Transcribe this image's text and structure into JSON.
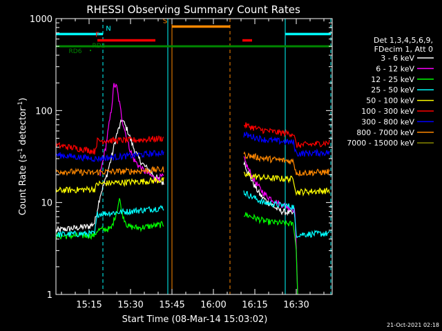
{
  "chart_data": {
    "type": "line",
    "title": "RHESSI Observing Summary Count Rates",
    "xlabel": "Start Time (08-Mar-14 15:03:02)",
    "ylabel_main": "Count Rate (s",
    "ylabel_sup1": "-1",
    "ylabel_mid": " detector",
    "ylabel_sup2": "-1",
    "ylabel_end": ")",
    "y_scale": "log",
    "ylim": [
      1,
      1000
    ],
    "x_start_label": "15:03:02",
    "xlim_minutes": [
      0,
      100
    ],
    "x_ticks": [
      {
        "label": "15:15",
        "minute": 12
      },
      {
        "label": "15:30",
        "minute": 27
      },
      {
        "label": "15:45",
        "minute": 42
      },
      {
        "label": "16:00",
        "minute": 57
      },
      {
        "label": "16:15",
        "minute": 72
      },
      {
        "label": "16:30",
        "minute": 87
      }
    ],
    "y_ticks": [
      {
        "label": "1",
        "value": 1
      },
      {
        "label": "10",
        "value": 10
      },
      {
        "label": "100",
        "value": 100
      },
      {
        "label": "1000",
        "value": 1000
      }
    ],
    "legend_header": [
      "Det 1,3,4,5,6,9,",
      "FDecim 1, Att 0"
    ],
    "series": [
      {
        "name": "3 - 6 keV",
        "color": "#ffffff",
        "segments": [
          [
            [
              0,
              5
            ],
            [
              12,
              5.5
            ],
            [
              14,
              6
            ],
            [
              16,
              12
            ],
            [
              18,
              18
            ],
            [
              20,
              30
            ],
            [
              22,
              55
            ],
            [
              24,
              80
            ],
            [
              26,
              60
            ],
            [
              28,
              40
            ],
            [
              30,
              30
            ],
            [
              32,
              25
            ],
            [
              34,
              22
            ],
            [
              36,
              19
            ],
            [
              38,
              17
            ],
            [
              39,
              16
            ]
          ],
          [
            [
              68,
              28
            ],
            [
              70,
              20
            ],
            [
              72,
              15
            ],
            [
              74,
              12
            ],
            [
              76,
              10.5
            ],
            [
              78,
              9.5
            ],
            [
              80,
              8.5
            ],
            [
              82,
              8
            ],
            [
              84,
              7.8
            ],
            [
              86,
              7.5
            ]
          ]
        ]
      },
      {
        "name": "6 - 12 keV",
        "color": "#ff00ff",
        "segments": [
          [
            [
              16,
              20
            ],
            [
              18,
              40
            ],
            [
              20,
              100
            ],
            [
              21,
              190
            ],
            [
              22,
              180
            ],
            [
              23,
              120
            ],
            [
              24,
              80
            ],
            [
              26,
              45
            ],
            [
              28,
              30
            ],
            [
              30,
              25
            ],
            [
              32,
              22
            ],
            [
              34,
              20
            ],
            [
              36,
              18
            ],
            [
              38,
              19
            ],
            [
              39,
              19
            ]
          ],
          [
            [
              68,
              30
            ],
            [
              70,
              22
            ],
            [
              72,
              17
            ],
            [
              74,
              14
            ],
            [
              76,
              12
            ],
            [
              78,
              11
            ],
            [
              80,
              10
            ],
            [
              82,
              9.5
            ],
            [
              84,
              9
            ],
            [
              86,
              8.5
            ],
            [
              86.5,
              8
            ],
            [
              87,
              3
            ],
            [
              87.5,
              1
            ]
          ]
        ]
      },
      {
        "name": "12 - 25 keV",
        "color": "#00ff00",
        "segments": [
          [
            [
              0,
              4.3
            ],
            [
              14,
              4.4
            ],
            [
              15,
              5
            ],
            [
              20,
              5.2
            ],
            [
              22,
              8
            ],
            [
              23,
              11
            ],
            [
              24,
              7.5
            ],
            [
              26,
              5.5
            ],
            [
              30,
              5.3
            ],
            [
              39,
              5.8
            ]
          ],
          [
            [
              68,
              7.5
            ],
            [
              76,
              6.2
            ],
            [
              86,
              5.8
            ],
            [
              87,
              3
            ],
            [
              87.5,
              1
            ]
          ]
        ]
      },
      {
        "name": "25 - 50 keV",
        "color": "#00ffff",
        "segments": [
          [
            [
              0,
              4.5
            ],
            [
              14,
              4.6
            ],
            [
              15,
              7.5
            ],
            [
              30,
              8.2
            ],
            [
              39,
              8.8
            ]
          ],
          [
            [
              68,
              13
            ],
            [
              70,
              12
            ],
            [
              75,
              10
            ],
            [
              80,
              9.5
            ],
            [
              86,
              9
            ],
            [
              87,
              4.5
            ],
            [
              99,
              4.6
            ]
          ]
        ]
      },
      {
        "name": "50 - 100 keV",
        "color": "#ffff00",
        "segments": [
          [
            [
              0,
              13.5
            ],
            [
              14,
              14
            ],
            [
              15,
              16
            ],
            [
              39,
              17.5
            ]
          ],
          [
            [
              68,
              20
            ],
            [
              76,
              18.5
            ],
            [
              86,
              18
            ],
            [
              87,
              13
            ],
            [
              99,
              13.5
            ]
          ]
        ]
      },
      {
        "name": "100 - 300 keV",
        "color": "#ff0000",
        "segments": [
          [
            [
              0,
              42
            ],
            [
              10,
              38
            ],
            [
              14,
              36
            ],
            [
              15,
              47
            ],
            [
              30,
              48
            ],
            [
              39,
              50
            ]
          ],
          [
            [
              68,
              70
            ],
            [
              74,
              62
            ],
            [
              80,
              58
            ],
            [
              86,
              56
            ],
            [
              87,
              42
            ],
            [
              93,
              43
            ],
            [
              99,
              45
            ]
          ]
        ]
      },
      {
        "name": "300 - 800 keV",
        "color": "#0000ff",
        "segments": [
          [
            [
              0,
              33
            ],
            [
              14,
              30
            ],
            [
              15,
              30
            ],
            [
              20,
              31
            ],
            [
              30,
              33
            ],
            [
              39,
              35
            ]
          ],
          [
            [
              68,
              55
            ],
            [
              76,
              48
            ],
            [
              86,
              45
            ],
            [
              87,
              34
            ],
            [
              99,
              35
            ]
          ]
        ]
      },
      {
        "name": "800 - 7000 keV",
        "color": "#ff8800",
        "segments": [
          [
            [
              0,
              22
            ],
            [
              14,
              21
            ],
            [
              15,
              21.5
            ],
            [
              30,
              22
            ],
            [
              39,
              23
            ]
          ],
          [
            [
              68,
              33
            ],
            [
              76,
              30
            ],
            [
              86,
              28
            ],
            [
              87,
              21
            ],
            [
              99,
              21.5
            ]
          ]
        ]
      },
      {
        "name": "7000 - 15000 keV",
        "color": "#888800",
        "segments": []
      }
    ],
    "flags": [
      {
        "label": "N",
        "color": "#00ffff",
        "label_minute": 19,
        "segments": [
          [
            0,
            17
          ],
          [
            83,
            99.5
          ]
        ],
        "level": 680
      },
      {
        "label": "F",
        "color": "#ff0000",
        "label_minute": 15,
        "segments": [
          [
            15,
            36
          ],
          [
            67.5,
            71
          ]
        ],
        "level": 580
      },
      {
        "label": "S",
        "color": "#ff8800",
        "label_minute": 39.5,
        "segments": [
          [
            42,
            63
          ]
        ],
        "level": 820
      },
      {
        "label": "RD6",
        "color": "#008800",
        "label_minute": 7,
        "segments": [
          [
            0,
            99.5
          ]
        ],
        "level": 500
      },
      {
        "label": "RD2",
        "color": "#008800",
        "label_minute": 15.5,
        "segments": [],
        "level": 500
      }
    ],
    "vlines": [
      {
        "minute": 17,
        "color": "#00ffff",
        "style": "dashed"
      },
      {
        "minute": 40.5,
        "color": "#00ffff",
        "style": "solid"
      },
      {
        "minute": 42,
        "color": "#ff8800",
        "style": "solid"
      },
      {
        "minute": 63,
        "color": "#ff8800",
        "style": "dashed"
      },
      {
        "minute": 83,
        "color": "#00ffff",
        "style": "solid"
      },
      {
        "minute": 99.5,
        "color": "#00ffff",
        "style": "dashed"
      }
    ],
    "timestamp": "21-Oct-2021 02:18"
  }
}
